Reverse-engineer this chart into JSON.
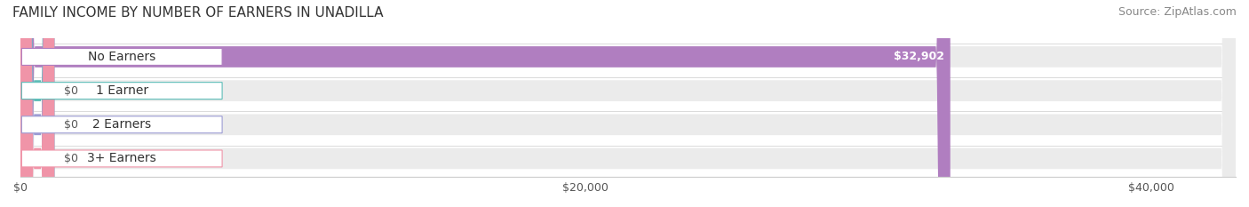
{
  "title": "FAMILY INCOME BY NUMBER OF EARNERS IN UNADILLA",
  "source": "Source: ZipAtlas.com",
  "categories": [
    "No Earners",
    "1 Earner",
    "2 Earners",
    "3+ Earners"
  ],
  "values": [
    32902,
    0,
    0,
    0
  ],
  "bar_colors": [
    "#b07ec0",
    "#5dbdb8",
    "#9b9bd4",
    "#f094a8"
  ],
  "label_colors": [
    "#b07ec0",
    "#5dbdb8",
    "#9b9bd4",
    "#f094a8"
  ],
  "xlim": [
    0,
    43000
  ],
  "xticks": [
    0,
    20000,
    40000
  ],
  "xtick_labels": [
    "$0",
    "$20,000",
    "$40,000"
  ],
  "bg_color": "#f5f5f5",
  "bar_bg_color": "#ebebeb",
  "title_fontsize": 11,
  "source_fontsize": 9,
  "label_fontsize": 10,
  "value_fontsize": 9,
  "bar_height": 0.62,
  "figsize": [
    14.06,
    2.33
  ],
  "dpi": 100
}
